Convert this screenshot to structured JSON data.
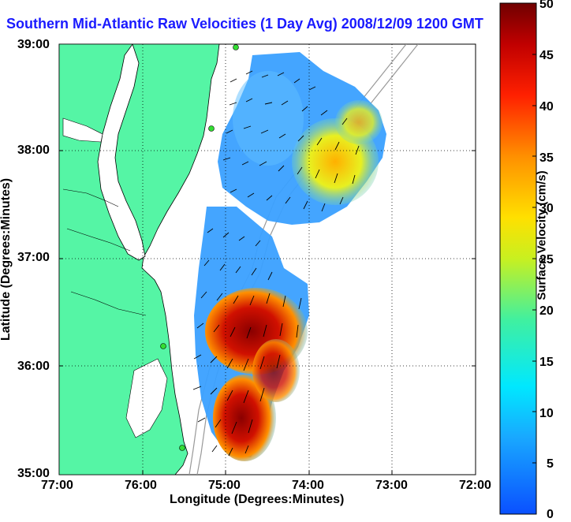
{
  "title": "Southern Mid-Atlantic Raw Velocities (1 Day Avg) 2008/12/09 1200 GMT",
  "x_axis": {
    "label": "Longitude (Degrees:Minutes)",
    "ticks": [
      "77:00",
      "76:00",
      "75:00",
      "74:00",
      "73:00",
      "72:00"
    ]
  },
  "y_axis": {
    "label": "Latitude (Degrees:Minutes)",
    "ticks": [
      "39:00",
      "38:00",
      "37:00",
      "36:00",
      "35:00"
    ]
  },
  "colorbar": {
    "label": "Surface Velocity (cm/s)",
    "min": 0,
    "max": 50,
    "ticks": [
      "50",
      "45",
      "40",
      "35",
      "30",
      "25",
      "20",
      "15",
      "10",
      "5",
      "0"
    ]
  },
  "colors": {
    "land": "#55f5a5",
    "water": "#ffffff",
    "title": "#1a1aff",
    "station": "#33dd33"
  }
}
